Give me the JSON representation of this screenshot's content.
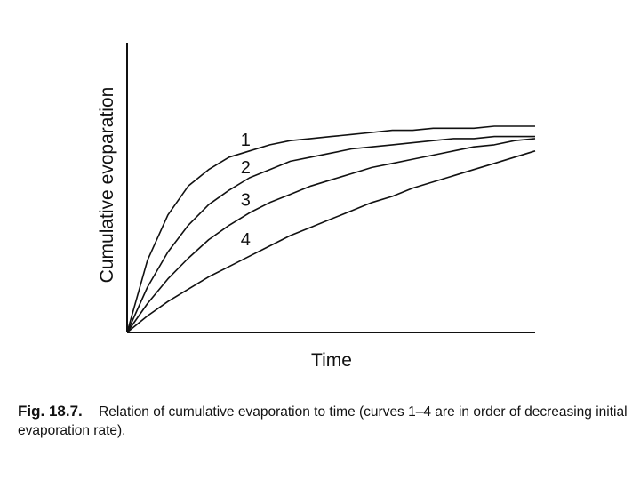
{
  "chart_data": {
    "type": "line",
    "title": "",
    "xlabel": "Time",
    "ylabel": "Cumulative evoparation",
    "xlim": [
      0,
      1
    ],
    "ylim": [
      0,
      1
    ],
    "grid": false,
    "legend": "none",
    "x": [
      0,
      0.05,
      0.1,
      0.15,
      0.2,
      0.25,
      0.3,
      0.35,
      0.4,
      0.45,
      0.5,
      0.55,
      0.6,
      0.65,
      0.7,
      0.75,
      0.8,
      0.85,
      0.9,
      0.95,
      1.0
    ],
    "series": [
      {
        "name": "1",
        "values": [
          0.0,
          0.35,
          0.57,
          0.71,
          0.79,
          0.85,
          0.88,
          0.91,
          0.93,
          0.94,
          0.95,
          0.96,
          0.97,
          0.98,
          0.98,
          0.99,
          0.99,
          0.99,
          1.0,
          1.0,
          1.0
        ]
      },
      {
        "name": "2",
        "values": [
          0.0,
          0.22,
          0.39,
          0.52,
          0.62,
          0.69,
          0.75,
          0.79,
          0.83,
          0.85,
          0.87,
          0.89,
          0.9,
          0.91,
          0.92,
          0.93,
          0.94,
          0.94,
          0.95,
          0.95,
          0.95
        ]
      },
      {
        "name": "3",
        "values": [
          0.0,
          0.14,
          0.26,
          0.36,
          0.45,
          0.52,
          0.58,
          0.63,
          0.67,
          0.71,
          0.74,
          0.77,
          0.8,
          0.82,
          0.84,
          0.86,
          0.88,
          0.9,
          0.91,
          0.93,
          0.94
        ]
      },
      {
        "name": "4",
        "values": [
          0.0,
          0.08,
          0.15,
          0.21,
          0.27,
          0.32,
          0.37,
          0.42,
          0.47,
          0.51,
          0.55,
          0.59,
          0.63,
          0.66,
          0.7,
          0.73,
          0.76,
          0.79,
          0.82,
          0.85,
          0.88
        ]
      }
    ]
  },
  "caption": {
    "label": "Fig. 18.7.",
    "text": "Relation of cumulative evaporation to time (curves 1–4 are in order of decreasing initial evaporation rate)."
  },
  "colors": {
    "ink": "#111111",
    "background": "#ffffff"
  }
}
